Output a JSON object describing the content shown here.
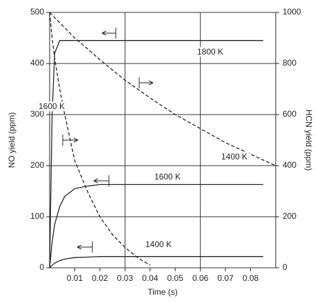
{
  "chart_data": {
    "type": "line",
    "x_label": "Time (s)",
    "y_label": "NO yield (ppm)",
    "y2_label": "HCN yield (ppm)",
    "x": [
      0,
      0.001,
      0.002,
      0.004,
      0.006,
      0.01,
      0.015,
      0.02,
      0.025,
      0.03,
      0.035,
      0.04,
      0.05,
      0.06,
      0.07,
      0.08,
      0.085,
      0.09
    ],
    "xlim": [
      0,
      0.09
    ],
    "xticks": [
      0.01,
      0.02,
      0.03,
      0.04,
      0.05,
      0.06,
      0.07,
      0.08
    ],
    "ylim": [
      0,
      500
    ],
    "yticks": [
      0,
      100,
      200,
      300,
      400,
      500
    ],
    "y2lim": [
      0,
      1000
    ],
    "y2ticks": [
      0,
      200,
      400,
      600,
      800,
      1000
    ],
    "grid": true,
    "color": "#222222",
    "series": [
      {
        "values": [
          0,
          300,
          420,
          445,
          445,
          445,
          445,
          445,
          445,
          445,
          445,
          445,
          445,
          445,
          445,
          445,
          445,
          null
        ],
        "dash": false
      },
      {
        "values": [
          0,
          50,
          85,
          120,
          140,
          155,
          160,
          163,
          163,
          163,
          163,
          163,
          163,
          163,
          163,
          163,
          163,
          null
        ],
        "dash": false
      },
      {
        "values": [
          0,
          5,
          9,
          14,
          17,
          20,
          21,
          22,
          22,
          22,
          22,
          22,
          22,
          22,
          22,
          22,
          22,
          null
        ],
        "dash": false
      },
      {
        "values": [
          1000,
          990,
          980,
          960,
          940,
          900,
          858,
          815,
          775,
          735,
          700,
          665,
          600,
          545,
          490,
          445,
          422,
          400
        ],
        "axis": "y2",
        "dash": true
      },
      {
        "values": [
          1000,
          900,
          820,
          700,
          600,
          420,
          300,
          200,
          130,
          80,
          40,
          10,
          null,
          null,
          null,
          null,
          null,
          null
        ],
        "axis": "y2",
        "dash": true
      }
    ],
    "annotations": [
      "1800 K",
      "1600 K",
      "1400 K",
      "1600 K",
      "1400 K"
    ]
  }
}
